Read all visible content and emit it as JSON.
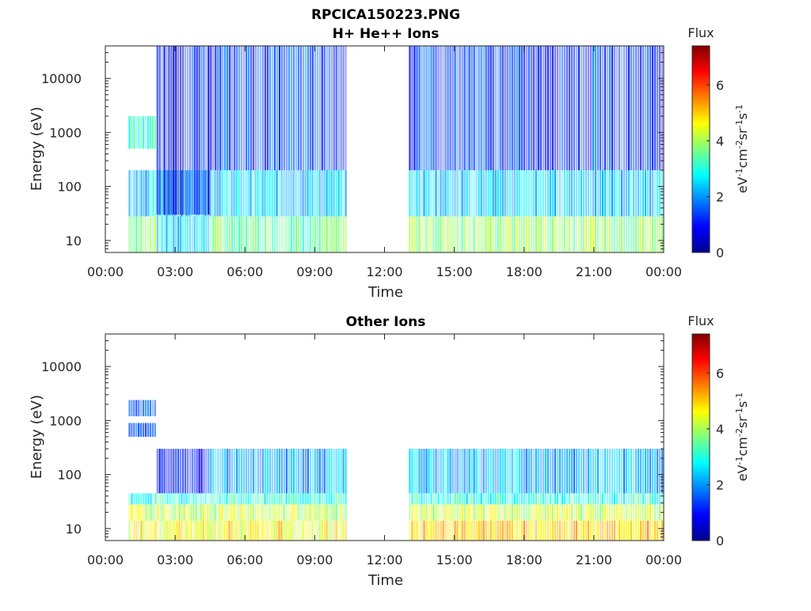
{
  "figure": {
    "title": "RPCICA150223.PNG"
  },
  "chart_data": [
    {
      "type": "heatmap",
      "title": "H+ He++ Ions",
      "xlabel": "Time",
      "ylabel": "Energy (eV)",
      "x_ticks": [
        "00:00",
        "03:00",
        "06:00",
        "09:00",
        "12:00",
        "15:00",
        "18:00",
        "21:00",
        "00:00"
      ],
      "x_range_hours": [
        0,
        24
      ],
      "y_scale": "log",
      "y_ticks": [
        {
          "value": 10,
          "label": "10"
        },
        {
          "value": 100,
          "label": "100"
        },
        {
          "value": 1000,
          "label": "1000"
        },
        {
          "value": 10000,
          "label": "10000"
        }
      ],
      "ylim": [
        6,
        40000
      ],
      "colorbar": {
        "title": "Flux",
        "unit_label": "eV-1cm-2sr-1s-1",
        "ticks": [
          0,
          2,
          4,
          6
        ],
        "range": [
          0,
          7.4
        ],
        "colormap": "jet"
      },
      "data_gaps_hours": [
        [
          0,
          1.0
        ],
        [
          10.4,
          13.05
        ]
      ],
      "regions": [
        {
          "t": [
            1.0,
            2.2
          ],
          "e": [
            6,
            28
          ],
          "flux": 3.8
        },
        {
          "t": [
            2.2,
            4.5
          ],
          "e": [
            6,
            28
          ],
          "flux": 2.6
        },
        {
          "t": [
            4.5,
            10.4
          ],
          "e": [
            6,
            28
          ],
          "flux": 3.6
        },
        {
          "t": [
            13.05,
            24
          ],
          "e": [
            6,
            28
          ],
          "flux": 3.9
        },
        {
          "t": [
            1.0,
            10.4
          ],
          "e": [
            28,
            200
          ],
          "flux": 2.4
        },
        {
          "t": [
            13.05,
            24
          ],
          "e": [
            28,
            200
          ],
          "flux": 2.4
        },
        {
          "t": [
            1.0,
            2.2
          ],
          "e": [
            500,
            2000
          ],
          "flux": 3.2
        },
        {
          "t": [
            2.2,
            4.5
          ],
          "e": [
            30,
            40000
          ],
          "flux": 1.0
        },
        {
          "t": [
            4.5,
            10.4
          ],
          "e": [
            200,
            40000
          ],
          "flux": 1.4
        },
        {
          "t": [
            13.05,
            24
          ],
          "e": [
            200,
            40000
          ],
          "flux": 1.3
        }
      ]
    },
    {
      "type": "heatmap",
      "title": "Other Ions",
      "xlabel": "Time",
      "ylabel": "Energy (eV)",
      "x_ticks": [
        "00:00",
        "03:00",
        "06:00",
        "09:00",
        "12:00",
        "15:00",
        "18:00",
        "21:00",
        "00:00"
      ],
      "x_range_hours": [
        0,
        24
      ],
      "y_scale": "log",
      "y_ticks": [
        {
          "value": 10,
          "label": "10"
        },
        {
          "value": 100,
          "label": "100"
        },
        {
          "value": 1000,
          "label": "1000"
        },
        {
          "value": 10000,
          "label": "10000"
        }
      ],
      "ylim": [
        6,
        40000
      ],
      "colorbar": {
        "title": "Flux",
        "unit_label": "eV-1cm-2sr-1s-1",
        "ticks": [
          0,
          2,
          4,
          6
        ],
        "range": [
          0,
          7.4
        ],
        "colormap": "jet"
      },
      "data_gaps_hours": [
        [
          0,
          1.0
        ],
        [
          10.4,
          13.05
        ]
      ],
      "regions": [
        {
          "t": [
            1.0,
            10.4
          ],
          "e": [
            6,
            14
          ],
          "flux": 4.6
        },
        {
          "t": [
            13.05,
            24
          ],
          "e": [
            6,
            14
          ],
          "flux": 5.0
        },
        {
          "t": [
            1.0,
            10.4
          ],
          "e": [
            14,
            28
          ],
          "flux": 4.2
        },
        {
          "t": [
            13.05,
            24
          ],
          "e": [
            14,
            28
          ],
          "flux": 4.2
        },
        {
          "t": [
            1.0,
            10.4
          ],
          "e": [
            28,
            45
          ],
          "flux": 3.0
        },
        {
          "t": [
            13.05,
            24
          ],
          "e": [
            28,
            45
          ],
          "flux": 3.0
        },
        {
          "t": [
            2.2,
            4.5
          ],
          "e": [
            45,
            300
          ],
          "flux": 1.2
        },
        {
          "t": [
            4.5,
            10.4
          ],
          "e": [
            45,
            300
          ],
          "flux": 2.1
        },
        {
          "t": [
            13.05,
            24
          ],
          "e": [
            45,
            300
          ],
          "flux": 2.2
        },
        {
          "t": [
            1.0,
            2.2
          ],
          "e": [
            1200,
            2400
          ],
          "flux": 1.5
        },
        {
          "t": [
            1.0,
            2.2
          ],
          "e": [
            500,
            900
          ],
          "flux": 1.6
        }
      ]
    }
  ]
}
